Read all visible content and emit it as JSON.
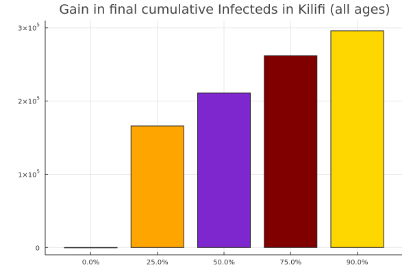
{
  "chart_data": {
    "type": "bar",
    "title": "Gain in final cumulative Infecteds in Kilifi (all ages)",
    "xlabel": "",
    "ylabel": "",
    "categories": [
      "0.0%",
      "25.0%",
      "50.0%",
      "75.0%",
      "90.0%"
    ],
    "values": [
      0,
      166000,
      211000,
      262000,
      296000
    ],
    "colors": [
      "#ffffff",
      "#ffa500",
      "#7f27cf",
      "#800000",
      "#ffd700"
    ],
    "ylim": [
      -10000,
      310000
    ],
    "yticks": [
      {
        "value": 0,
        "label": "0"
      },
      {
        "value": 100000,
        "base": "1×10",
        "exp": "5"
      },
      {
        "value": 200000,
        "base": "2×10",
        "exp": "5"
      },
      {
        "value": 300000,
        "base": "3×10",
        "exp": "5"
      }
    ],
    "grid": true,
    "legend": "none"
  }
}
